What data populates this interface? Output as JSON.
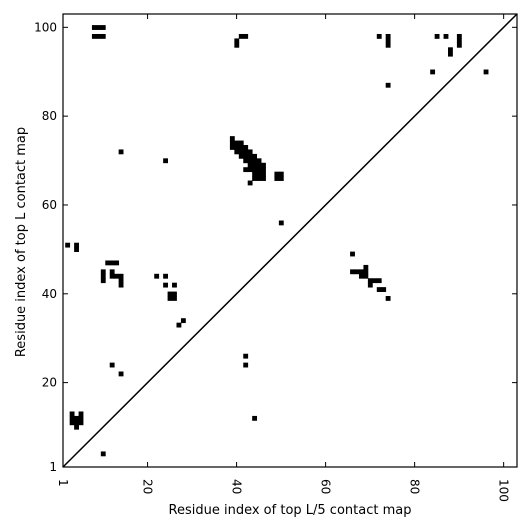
{
  "chart_data": {
    "type": "heatmap",
    "title": "",
    "xlabel": "Residue index of top L/5 contact map",
    "ylabel": "Residue index of top L contact map",
    "xlim": [
      1,
      103
    ],
    "ylim": [
      1,
      103
    ],
    "x_ticks": [
      1,
      20,
      40,
      60,
      80,
      100
    ],
    "y_ticks": [
      1,
      20,
      40,
      60,
      80,
      100
    ],
    "x_tick_labels": [
      "1",
      "20",
      "40",
      "60",
      "80",
      "100"
    ],
    "y_tick_labels": [
      "1",
      "20",
      "40",
      "60",
      "80",
      "100"
    ],
    "diagonal": true,
    "grid": false,
    "colors": {
      "contact": "#000000",
      "background": "#ffffff",
      "axis": "#000000"
    },
    "cells": [
      [
        8,
        100
      ],
      [
        9,
        100
      ],
      [
        10,
        100
      ],
      [
        8,
        98
      ],
      [
        9,
        98
      ],
      [
        10,
        98
      ],
      [
        40,
        97
      ],
      [
        40,
        96
      ],
      [
        41,
        98
      ],
      [
        42,
        98
      ],
      [
        72,
        98
      ],
      [
        74,
        98
      ],
      [
        74,
        97
      ],
      [
        74,
        96
      ],
      [
        85,
        98
      ],
      [
        87,
        98
      ],
      [
        88,
        95
      ],
      [
        88,
        94
      ],
      [
        90,
        98
      ],
      [
        90,
        97
      ],
      [
        90,
        96
      ],
      [
        74,
        87
      ],
      [
        84,
        90
      ],
      [
        96,
        90
      ],
      [
        14,
        72
      ],
      [
        24,
        70
      ],
      [
        39,
        75
      ],
      [
        39,
        74
      ],
      [
        40,
        74
      ],
      [
        41,
        74
      ],
      [
        39,
        73
      ],
      [
        40,
        73
      ],
      [
        41,
        73
      ],
      [
        42,
        73
      ],
      [
        40,
        72
      ],
      [
        41,
        72
      ],
      [
        42,
        72
      ],
      [
        43,
        72
      ],
      [
        41,
        71
      ],
      [
        42,
        71
      ],
      [
        43,
        71
      ],
      [
        44,
        71
      ],
      [
        42,
        70
      ],
      [
        43,
        70
      ],
      [
        44,
        70
      ],
      [
        45,
        70
      ],
      [
        43,
        69
      ],
      [
        44,
        69
      ],
      [
        45,
        69
      ],
      [
        46,
        69
      ],
      [
        42,
        68
      ],
      [
        43,
        68
      ],
      [
        44,
        68
      ],
      [
        45,
        68
      ],
      [
        46,
        68
      ],
      [
        44,
        67
      ],
      [
        45,
        67
      ],
      [
        46,
        67
      ],
      [
        49,
        67
      ],
      [
        50,
        67
      ],
      [
        44,
        66
      ],
      [
        45,
        66
      ],
      [
        46,
        66
      ],
      [
        49,
        66
      ],
      [
        50,
        66
      ],
      [
        43,
        65
      ],
      [
        50,
        56
      ],
      [
        2,
        51
      ],
      [
        4,
        51
      ],
      [
        4,
        50
      ],
      [
        11,
        47
      ],
      [
        12,
        47
      ],
      [
        13,
        47
      ],
      [
        10,
        45
      ],
      [
        10,
        44
      ],
      [
        10,
        43
      ],
      [
        12,
        45
      ],
      [
        12,
        44
      ],
      [
        13,
        44
      ],
      [
        14,
        44
      ],
      [
        14,
        43
      ],
      [
        14,
        42
      ],
      [
        22,
        44
      ],
      [
        24,
        44
      ],
      [
        24,
        42
      ],
      [
        26,
        42
      ],
      [
        25,
        40
      ],
      [
        26,
        40
      ],
      [
        25,
        39
      ],
      [
        26,
        39
      ],
      [
        28,
        34
      ],
      [
        27,
        33
      ],
      [
        66,
        49
      ],
      [
        66,
        45
      ],
      [
        67,
        45
      ],
      [
        68,
        45
      ],
      [
        69,
        46
      ],
      [
        68,
        44
      ],
      [
        69,
        44
      ],
      [
        69,
        45
      ],
      [
        70,
        43
      ],
      [
        71,
        43
      ],
      [
        72,
        43
      ],
      [
        70,
        42
      ],
      [
        72,
        41
      ],
      [
        73,
        41
      ],
      [
        74,
        39
      ],
      [
        42,
        26
      ],
      [
        42,
        24
      ],
      [
        12,
        24
      ],
      [
        14,
        22
      ],
      [
        44,
        12
      ],
      [
        3,
        13
      ],
      [
        5,
        13
      ],
      [
        3,
        12
      ],
      [
        4,
        12
      ],
      [
        5,
        12
      ],
      [
        3,
        11
      ],
      [
        4,
        11
      ],
      [
        5,
        11
      ],
      [
        4,
        10
      ],
      [
        10,
        4
      ]
    ]
  }
}
